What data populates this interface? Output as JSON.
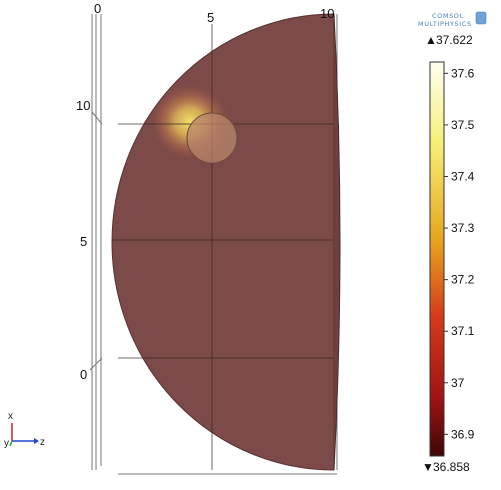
{
  "logo": {
    "line1": "COMSOL",
    "line2": "MULTIPHYSICS",
    "name": "comsol-multiphysics-logo"
  },
  "plot": {
    "horizontal_ticks": [
      "0",
      "5",
      "10"
    ],
    "vertical_ticks": [
      "10",
      "5",
      "0"
    ],
    "body_color": "#7c4a48",
    "hotspot_color": "#f2df63",
    "marker_color": "#b8866b",
    "line_color": "#333333"
  },
  "colorbar": {
    "max_label": "37.622",
    "min_label": "36.858",
    "max_marker": "▲",
    "min_marker": "▼",
    "ticks": [
      "37.6",
      "37.5",
      "37.4",
      "37.3",
      "37.2",
      "37.1",
      "37",
      "36.9"
    ],
    "tick_values": [
      37.6,
      37.5,
      37.4,
      37.3,
      37.2,
      37.1,
      37.0,
      36.9
    ],
    "range": [
      36.858,
      37.622
    ],
    "colors": [
      "#fffdf0",
      "#f6f17a",
      "#e7a51f",
      "#d43a1a",
      "#a01414",
      "#3e0606"
    ]
  },
  "axis_triad": {
    "x_label": "x",
    "y_label": "y",
    "z_label": "z",
    "x_color": "#cc2222",
    "y_color": "#22aa22",
    "z_color": "#2244cc"
  }
}
